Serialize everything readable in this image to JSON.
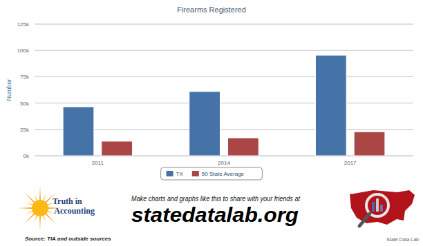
{
  "chart_data": {
    "type": "bar",
    "title": "Firearms Registered",
    "y_label": "Number",
    "categories": [
      "2011",
      "2014",
      "2017"
    ],
    "series": [
      {
        "name": "TX",
        "color": "#4572a7",
        "values": [
          46500,
          61000,
          95500
        ]
      },
      {
        "name": "50 State Average",
        "color": "#aa4643",
        "values": [
          13800,
          17000,
          22800
        ]
      }
    ],
    "ylim": [
      0,
      125000
    ],
    "yticks": [
      {
        "value": 0,
        "label": "0k"
      },
      {
        "value": 25000,
        "label": "25k"
      },
      {
        "value": 50000,
        "label": "50k"
      },
      {
        "value": 75000,
        "label": "75k"
      },
      {
        "value": 100000,
        "label": "100k"
      },
      {
        "value": 125000,
        "label": "125k"
      }
    ],
    "grid": true,
    "legend": "bottom"
  },
  "footer": {
    "brand": "Truth in Accounting",
    "source": "Source: TIA and outside sources",
    "tagline": "Make charts and graphs like this to share with your friends at",
    "url": "statedatalab.org",
    "site_name": "State Data Lab"
  }
}
